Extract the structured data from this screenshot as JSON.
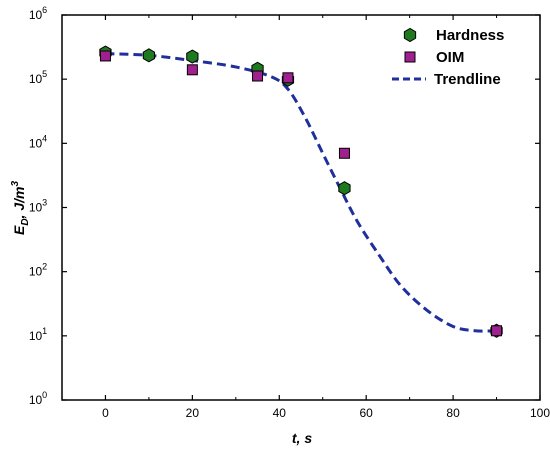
{
  "chart_data": {
    "type": "scatter",
    "xlabel_main": "t",
    "xlabel_unit": ", s",
    "ylabel_main": "E",
    "ylabel_sub": "D",
    "ylabel_unit": ", J/m",
    "ylabel_sup": "3",
    "xlim": [
      -10,
      100
    ],
    "ylim": [
      1,
      1000000
    ],
    "yscale": "log",
    "x_ticks": [
      0,
      20,
      40,
      60,
      80,
      100
    ],
    "y_ticks": [
      {
        "value": 1,
        "base": "10",
        "exp": "0"
      },
      {
        "value": 10,
        "base": "10",
        "exp": "1"
      },
      {
        "value": 100,
        "base": "10",
        "exp": "2"
      },
      {
        "value": 1000,
        "base": "10",
        "exp": "3"
      },
      {
        "value": 10000,
        "base": "10",
        "exp": "4"
      },
      {
        "value": 100000,
        "base": "10",
        "exp": "5"
      },
      {
        "value": 1000000,
        "base": "10",
        "exp": "6"
      }
    ],
    "legend_position": "top-right",
    "series": [
      {
        "name": "Hardness",
        "marker": "hexagon",
        "color": "#1f7a1f",
        "points": [
          {
            "x": 0,
            "y": 260000
          },
          {
            "x": 10,
            "y": 235000
          },
          {
            "x": 20,
            "y": 225000
          },
          {
            "x": 35,
            "y": 145000
          },
          {
            "x": 42,
            "y": 98000
          },
          {
            "x": 55,
            "y": 2000
          },
          {
            "x": 90,
            "y": 12
          }
        ]
      },
      {
        "name": "OIM",
        "marker": "square",
        "color": "#a0208f",
        "points": [
          {
            "x": 0,
            "y": 230000
          },
          {
            "x": 20,
            "y": 140000
          },
          {
            "x": 35,
            "y": 112000
          },
          {
            "x": 42,
            "y": 105000
          },
          {
            "x": 55,
            "y": 7000
          },
          {
            "x": 90,
            "y": 12
          }
        ]
      },
      {
        "name": "Trendline",
        "marker": "dashed-line",
        "color": "#1f2f9c",
        "points": [
          {
            "x": 0,
            "y": 250000
          },
          {
            "x": 10,
            "y": 235000
          },
          {
            "x": 20,
            "y": 195000
          },
          {
            "x": 30,
            "y": 155000
          },
          {
            "x": 38,
            "y": 110000
          },
          {
            "x": 42,
            "y": 70000
          },
          {
            "x": 46,
            "y": 25000
          },
          {
            "x": 50,
            "y": 7000
          },
          {
            "x": 54,
            "y": 2000
          },
          {
            "x": 58,
            "y": 600
          },
          {
            "x": 63,
            "y": 180
          },
          {
            "x": 68,
            "y": 60
          },
          {
            "x": 74,
            "y": 25
          },
          {
            "x": 80,
            "y": 14
          },
          {
            "x": 85,
            "y": 12
          },
          {
            "x": 90,
            "y": 12
          }
        ]
      }
    ]
  }
}
